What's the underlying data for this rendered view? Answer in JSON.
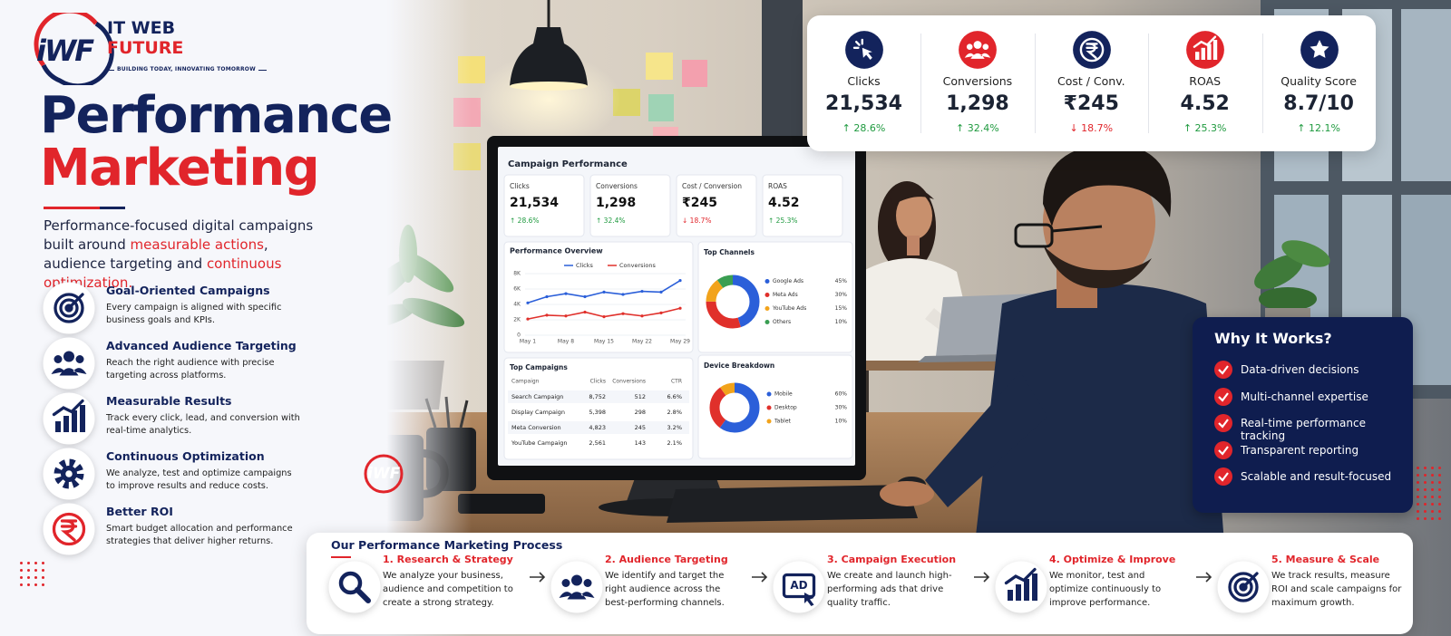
{
  "logo": {
    "monogram": "iWF",
    "name_1": "IT WEB",
    "name_2": "FUTURE",
    "tagline": "BUILDING TODAY, INNOVATING TOMORROW"
  },
  "header": {
    "title_1": "Performance",
    "title_2": "Marketing",
    "intro": [
      {
        "text": "Performance-focused digital campaigns built around "
      },
      {
        "text": "measurable actions",
        "highlight": true
      },
      {
        "text": ", audience targeting and "
      },
      {
        "text": "continuous optimization.",
        "highlight": true
      }
    ]
  },
  "features": [
    {
      "title": "Goal-Oriented Campaigns",
      "text": "Every campaign is aligned with specific business goals and KPIs."
    },
    {
      "title": "Advanced Audience Targeting",
      "text": "Reach the right audience with precise targeting across platforms."
    },
    {
      "title": "Measurable Results",
      "text": "Track every click, lead, and conversion with real-time analytics."
    },
    {
      "title": "Continuous Optimization",
      "text": "We analyze, test and optimize campaigns to improve results and reduce costs."
    },
    {
      "title": "Better ROI",
      "text": "Smart budget allocation and performance strategies that deliver higher returns."
    }
  ],
  "metrics": [
    {
      "label": "Clicks",
      "value": "21,534",
      "change": "↑ 28.6%",
      "direction": "up"
    },
    {
      "label": "Conversions",
      "value": "1,298",
      "change": "↑ 32.4%",
      "direction": "up"
    },
    {
      "label": "Cost / Conv.",
      "value": "₹245",
      "change": "↓ 18.7%",
      "direction": "down"
    },
    {
      "label": "ROAS",
      "value": "4.52",
      "change": "↑ 25.3%",
      "direction": "up"
    },
    {
      "label": "Quality Score",
      "value": "8.7/10",
      "change": "↑ 12.1%",
      "direction": "up"
    }
  ],
  "dashboard": {
    "title": "Campaign Performance",
    "kpis": [
      {
        "label": "Clicks",
        "value": "21,534",
        "change": "↑ 28.6%",
        "direction": "up"
      },
      {
        "label": "Conversions",
        "value": "1,298",
        "change": "↑ 32.4%",
        "direction": "up"
      },
      {
        "label": "Cost / Conversion",
        "value": "₹245",
        "change": "↓ 18.7%",
        "direction": "down"
      },
      {
        "label": "ROAS",
        "value": "4.52",
        "change": "↑ 25.3%",
        "direction": "up"
      }
    ],
    "overview": {
      "type": "line",
      "title": "Performance Overview",
      "categories": [
        "May 1",
        null,
        "May 8",
        null,
        "May 15",
        null,
        "May 22",
        null,
        "May 29"
      ],
      "series": [
        {
          "name": "Clicks",
          "color": "#2b5fd9",
          "values": [
            4200,
            5000,
            5400,
            5000,
            5600,
            5300,
            5700,
            5600,
            7100
          ]
        },
        {
          "name": "Conversions",
          "color": "#e0302b",
          "values": [
            2100,
            2600,
            2500,
            3000,
            2400,
            2800,
            2500,
            2900,
            3500
          ]
        }
      ],
      "ylim": [
        0,
        8000
      ],
      "yticks": [
        0,
        {
          "value": 2000,
          "label": "2K"
        },
        {
          "value": 4000,
          "label": "4K"
        },
        {
          "value": 6000,
          "label": "6K"
        },
        {
          "value": 8000,
          "label": "8K"
        }
      ]
    },
    "channels": {
      "type": "donut",
      "title": "Top Channels",
      "categories": [
        "Google Ads",
        "Meta Ads",
        "YouTube Ads",
        "Others"
      ],
      "values": [
        45,
        30,
        15,
        10
      ],
      "value_labels": [
        "45%",
        "30%",
        "15%",
        "10%"
      ],
      "colors": [
        "#2b5fd9",
        "#e0302b",
        "#f2a31b",
        "#3a9e52"
      ]
    },
    "campaigns": {
      "title": "Top Campaigns",
      "columns": [
        "Campaign",
        "Clicks",
        "Conversions",
        "CTR"
      ],
      "rows": [
        [
          "Search Campaign",
          "8,752",
          "512",
          "6.6%"
        ],
        [
          "Display Campaign",
          "5,398",
          "298",
          "2.8%"
        ],
        [
          "Meta Conversion",
          "4,823",
          "245",
          "3.2%"
        ],
        [
          "YouTube Campaign",
          "2,561",
          "143",
          "2.1%"
        ]
      ]
    },
    "devices": {
      "type": "donut",
      "title": "Device Breakdown",
      "categories": [
        "Mobile",
        "Desktop",
        "Tablet"
      ],
      "values": [
        60,
        30,
        10
      ],
      "value_labels": [
        "60%",
        "30%",
        "10%"
      ],
      "colors": [
        "#2b5fd9",
        "#e0302b",
        "#f2a31b"
      ]
    }
  },
  "why": {
    "title": "Why It Works?",
    "items": [
      "Data-driven decisions",
      "Multi-channel expertise",
      "Real-time performance tracking",
      "Transparent reporting",
      "Scalable and result-focused"
    ]
  },
  "process": {
    "title": "Our Performance Marketing Process",
    "steps": [
      {
        "title": "1. Research & Strategy",
        "text": "We analyze your business, audience and competition to create a strong strategy."
      },
      {
        "title": "2. Audience Targeting",
        "text": "We identify and target the right audience across the best-performing channels."
      },
      {
        "title": "3. Campaign Execution",
        "text": "We create and launch high-performing ads that drive quality traffic.",
        "icon_label": "AD"
      },
      {
        "title": "4. Optimize & Improve",
        "text": "We monitor, test and optimize continuously to improve performance."
      },
      {
        "title": "5. Measure & Scale",
        "text": "We track results, measure ROI and scale campaigns for maximum growth."
      }
    ]
  }
}
